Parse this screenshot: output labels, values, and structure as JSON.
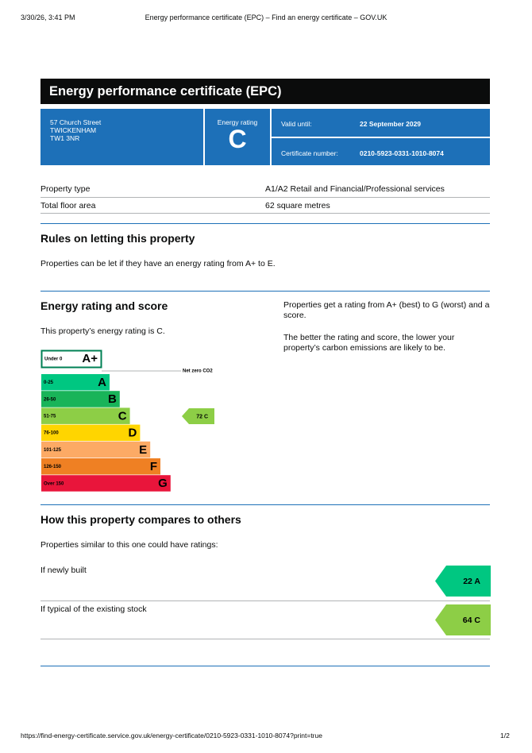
{
  "browser_header": {
    "datetime": "3/30/26, 3:41 PM",
    "page_title": "Energy performance certificate (EPC) – Find an energy certificate – GOV.UK"
  },
  "title": "Energy performance certificate (EPC)",
  "summary": {
    "address": [
      "57 Church Street",
      "TWICKENHAM",
      "TW1 3NR"
    ],
    "rating_label": "Energy rating",
    "rating": "C",
    "valid_until_label": "Valid until:",
    "valid_until": "22 September 2029",
    "certificate_label": "Certificate number:",
    "certificate_number": "0210-5923-0331-1010-8074",
    "color": "#1d70b8"
  },
  "property": {
    "rows": [
      [
        "Property type",
        "A1/A2 Retail and Financial/Professional services"
      ],
      [
        "Total floor area",
        "62 square metres"
      ]
    ]
  },
  "letting": {
    "heading": "Rules on letting this property",
    "text": "Properties can be let if they have an energy rating from A+ to E."
  },
  "rating_section": {
    "heading": "Energy rating and score",
    "text": "This property’s energy rating is C.",
    "side_text": [
      "Properties get a rating from A+ (best) to G (worst) and a score.",
      "The better the rating and score, the lower your property’s carbon emissions are likely to be."
    ]
  },
  "rating_chart": {
    "top_band": {
      "range": "Under 0",
      "letter": "A+",
      "color": "#008054"
    },
    "net_zero": "Net zero CO2",
    "bands": [
      {
        "range": "0-25",
        "letter": "A",
        "color": "#00c781"
      },
      {
        "range": "26-50",
        "letter": "B",
        "color": "#19b459"
      },
      {
        "range": "51-75",
        "letter": "C",
        "color": "#8dce46"
      },
      {
        "range": "76-100",
        "letter": "D",
        "color": "#ffd500"
      },
      {
        "range": "101-125",
        "letter": "E",
        "color": "#fcaa65"
      },
      {
        "range": "126-150",
        "letter": "F",
        "color": "#ef8023"
      },
      {
        "range": "Over 150",
        "letter": "G",
        "color": "#e9153b"
      }
    ],
    "current": {
      "score": 72,
      "letter": "C",
      "color": "#8dce46"
    }
  },
  "compare": {
    "heading": "How this property compares to others",
    "text": "Properties similar to this one could have ratings:",
    "rows": [
      {
        "label": "If newly built",
        "score": 22,
        "letter": "A",
        "color": "#00c781"
      },
      {
        "label": "If typical of the existing stock",
        "score": 64,
        "letter": "C",
        "color": "#8dce46"
      }
    ]
  },
  "footer": {
    "url": "https://find-energy-certificate.service.gov.uk/energy-certificate/0210-5923-0331-1010-8074?print=true",
    "page": "1/2"
  }
}
